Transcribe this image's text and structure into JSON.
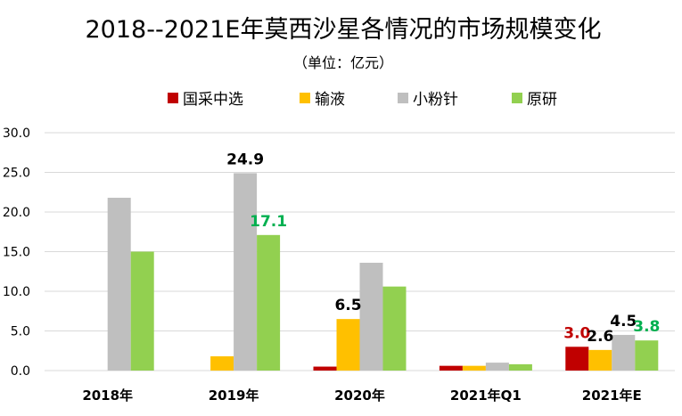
{
  "chart_data": {
    "type": "bar",
    "title": "2018--2021E年莫西沙星各情况的市场规模变化",
    "subtitle": "（单位：亿元）",
    "categories": [
      "2018年",
      "2019年",
      "2020年",
      "2021年Q1",
      "2021年E"
    ],
    "ylim": [
      0,
      30
    ],
    "yticks": [
      "0.0",
      "5.0",
      "10.0",
      "15.0",
      "20.0",
      "25.0",
      "30.0"
    ],
    "ytick_values": [
      0,
      5,
      10,
      15,
      20,
      25,
      30
    ],
    "grid": true,
    "legend_position": "top",
    "series": [
      {
        "name": "国采中选",
        "color": "#c00000",
        "values": [
          0,
          0,
          0.5,
          0.6,
          3.0
        ]
      },
      {
        "name": "输液",
        "color": "#ffc000",
        "values": [
          0,
          1.8,
          6.5,
          0.6,
          2.6
        ]
      },
      {
        "name": "小粉针",
        "color": "#bfbfbf",
        "values": [
          21.8,
          24.9,
          13.6,
          1.0,
          4.5
        ]
      },
      {
        "name": "原研",
        "color": "#92d050",
        "values": [
          15.0,
          17.1,
          10.6,
          0.8,
          3.8
        ]
      }
    ],
    "data_labels": [
      {
        "series": 1,
        "category": 2,
        "text": "6.5",
        "color": "#000000"
      },
      {
        "series": 2,
        "category": 1,
        "text": "24.9",
        "color": "#000000"
      },
      {
        "series": 3,
        "category": 1,
        "text": "17.1",
        "color": "#00b050"
      },
      {
        "series": 0,
        "category": 4,
        "text": "3.0",
        "color": "#c00000"
      },
      {
        "series": 1,
        "category": 4,
        "text": "2.6",
        "color": "#000000"
      },
      {
        "series": 2,
        "category": 4,
        "text": "4.5",
        "color": "#000000"
      },
      {
        "series": 3,
        "category": 4,
        "text": "3.8",
        "color": "#00b050"
      }
    ]
  }
}
